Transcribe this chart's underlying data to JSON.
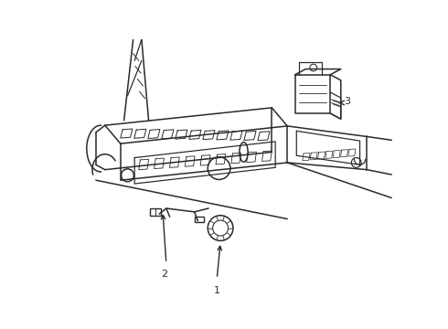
{
  "background_color": "#ffffff",
  "line_color": "#2a2a2a",
  "line_width": 1.1,
  "callout_fontsize": 8,
  "figure_width": 4.9,
  "figure_height": 3.6,
  "dpi": 100
}
